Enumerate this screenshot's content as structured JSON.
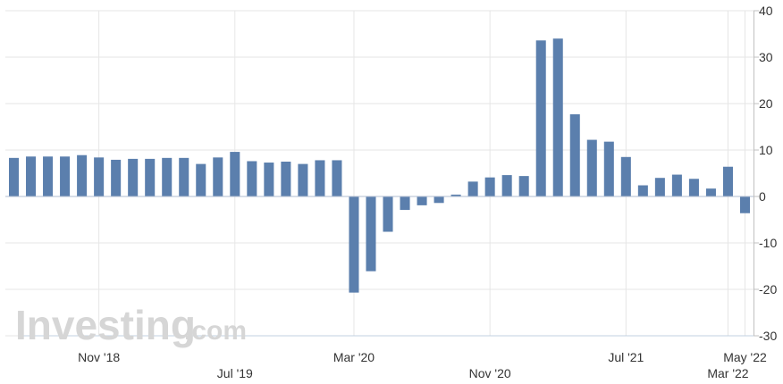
{
  "chart_data": {
    "type": "bar",
    "color": "#5b7fad",
    "gridColor": "#e6e6e6",
    "zeroLineColor": "#b0bcd0",
    "ylim": [
      -30,
      40
    ],
    "yticks": [
      40,
      30,
      20,
      10,
      0,
      -10,
      -20,
      -30
    ],
    "grid": true,
    "values": [
      8.3,
      8.6,
      8.6,
      8.6,
      8.9,
      8.4,
      7.9,
      8.1,
      8.1,
      8.3,
      8.3,
      7.0,
      8.4,
      9.6,
      7.6,
      7.3,
      7.5,
      7.0,
      7.8,
      7.8,
      -20.7,
      -16.1,
      -7.6,
      -2.9,
      -1.9,
      -1.4,
      0.4,
      3.2,
      4.1,
      4.6,
      4.4,
      33.6,
      34.0,
      17.7,
      12.2,
      11.8,
      8.5,
      2.4,
      4.0,
      4.7,
      3.8,
      1.7,
      6.4,
      -3.6
    ],
    "xticks": [
      {
        "label": "Nov '18",
        "index": 5,
        "row": 1
      },
      {
        "label": "Jul '19",
        "index": 13,
        "row": 2
      },
      {
        "label": "Mar '20",
        "index": 20,
        "row": 1
      },
      {
        "label": "Nov '20",
        "index": 28,
        "row": 2
      },
      {
        "label": "Jul '21",
        "index": 36,
        "row": 1
      },
      {
        "label": "Mar '22",
        "index": 42,
        "row": 2
      },
      {
        "label": "May '22",
        "index": 43,
        "row": 1
      }
    ]
  },
  "watermark": {
    "brand": "Investing",
    "suffix": ".com",
    "color": "#d6d6d6",
    "accent": "#e8e8e8"
  }
}
